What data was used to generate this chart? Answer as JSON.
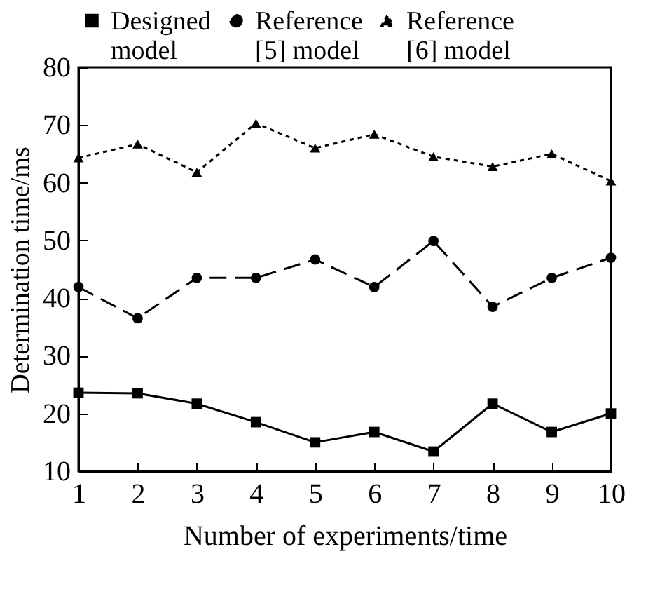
{
  "chart_data": {
    "type": "line",
    "xlabel": "Number of experiments/time",
    "ylabel": "Determination time/ms",
    "x": [
      1,
      2,
      3,
      4,
      5,
      6,
      7,
      8,
      9,
      10
    ],
    "xlim": [
      1,
      10
    ],
    "xticks": [
      1,
      2,
      3,
      4,
      5,
      6,
      7,
      8,
      9,
      10
    ],
    "ylim": [
      10,
      80
    ],
    "yticks": [
      10,
      20,
      30,
      40,
      50,
      60,
      70,
      80
    ],
    "grid": false,
    "legend": "top",
    "series": [
      {
        "name": "Designed model",
        "color": "#000000",
        "marker": "square",
        "line_style": "solid",
        "values": [
          23.6,
          23.5,
          21.7,
          18.5,
          15.0,
          16.8,
          13.4,
          21.7,
          16.8,
          20.0
        ]
      },
      {
        "name": "Reference [5] model",
        "color": "#000000",
        "marker": "circle",
        "line_style": "dashed",
        "values": [
          41.9,
          36.5,
          43.5,
          43.5,
          46.7,
          41.9,
          49.9,
          38.5,
          43.5,
          47.0
        ]
      },
      {
        "name": "Reference [6] model",
        "color": "#000000",
        "marker": "triangle",
        "line_style": "dotted",
        "values": [
          64.3,
          66.7,
          61.8,
          70.3,
          66.0,
          68.4,
          64.5,
          62.8,
          65.0,
          60.3
        ]
      }
    ]
  }
}
